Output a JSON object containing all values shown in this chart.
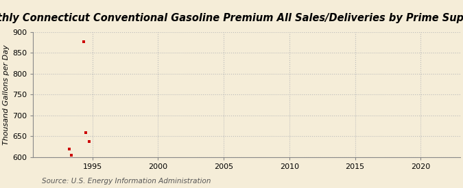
{
  "title": "Monthly Connecticut Conventional Gasoline Premium All Sales/Deliveries by Prime Supplier",
  "ylabel": "Thousand Gallons per Day",
  "source": "Source: U.S. Energy Information Administration",
  "background_color": "#f5edd8",
  "plot_bg_color": "#f5edd8",
  "data_color": "#cc0000",
  "x_data": [
    1993.25,
    1993.42,
    1994.33,
    1994.5,
    1994.75
  ],
  "y_data": [
    620,
    604,
    876,
    658,
    638
  ],
  "xlim": [
    1990.5,
    2023
  ],
  "ylim": [
    600,
    900
  ],
  "xticks": [
    1995,
    2000,
    2005,
    2010,
    2015,
    2020
  ],
  "yticks": [
    600,
    650,
    700,
    750,
    800,
    850,
    900
  ],
  "grid_color": "#bbbbbb",
  "title_fontsize": 10.5,
  "label_fontsize": 8,
  "tick_fontsize": 8,
  "source_fontsize": 7.5,
  "marker_size": 3.5
}
